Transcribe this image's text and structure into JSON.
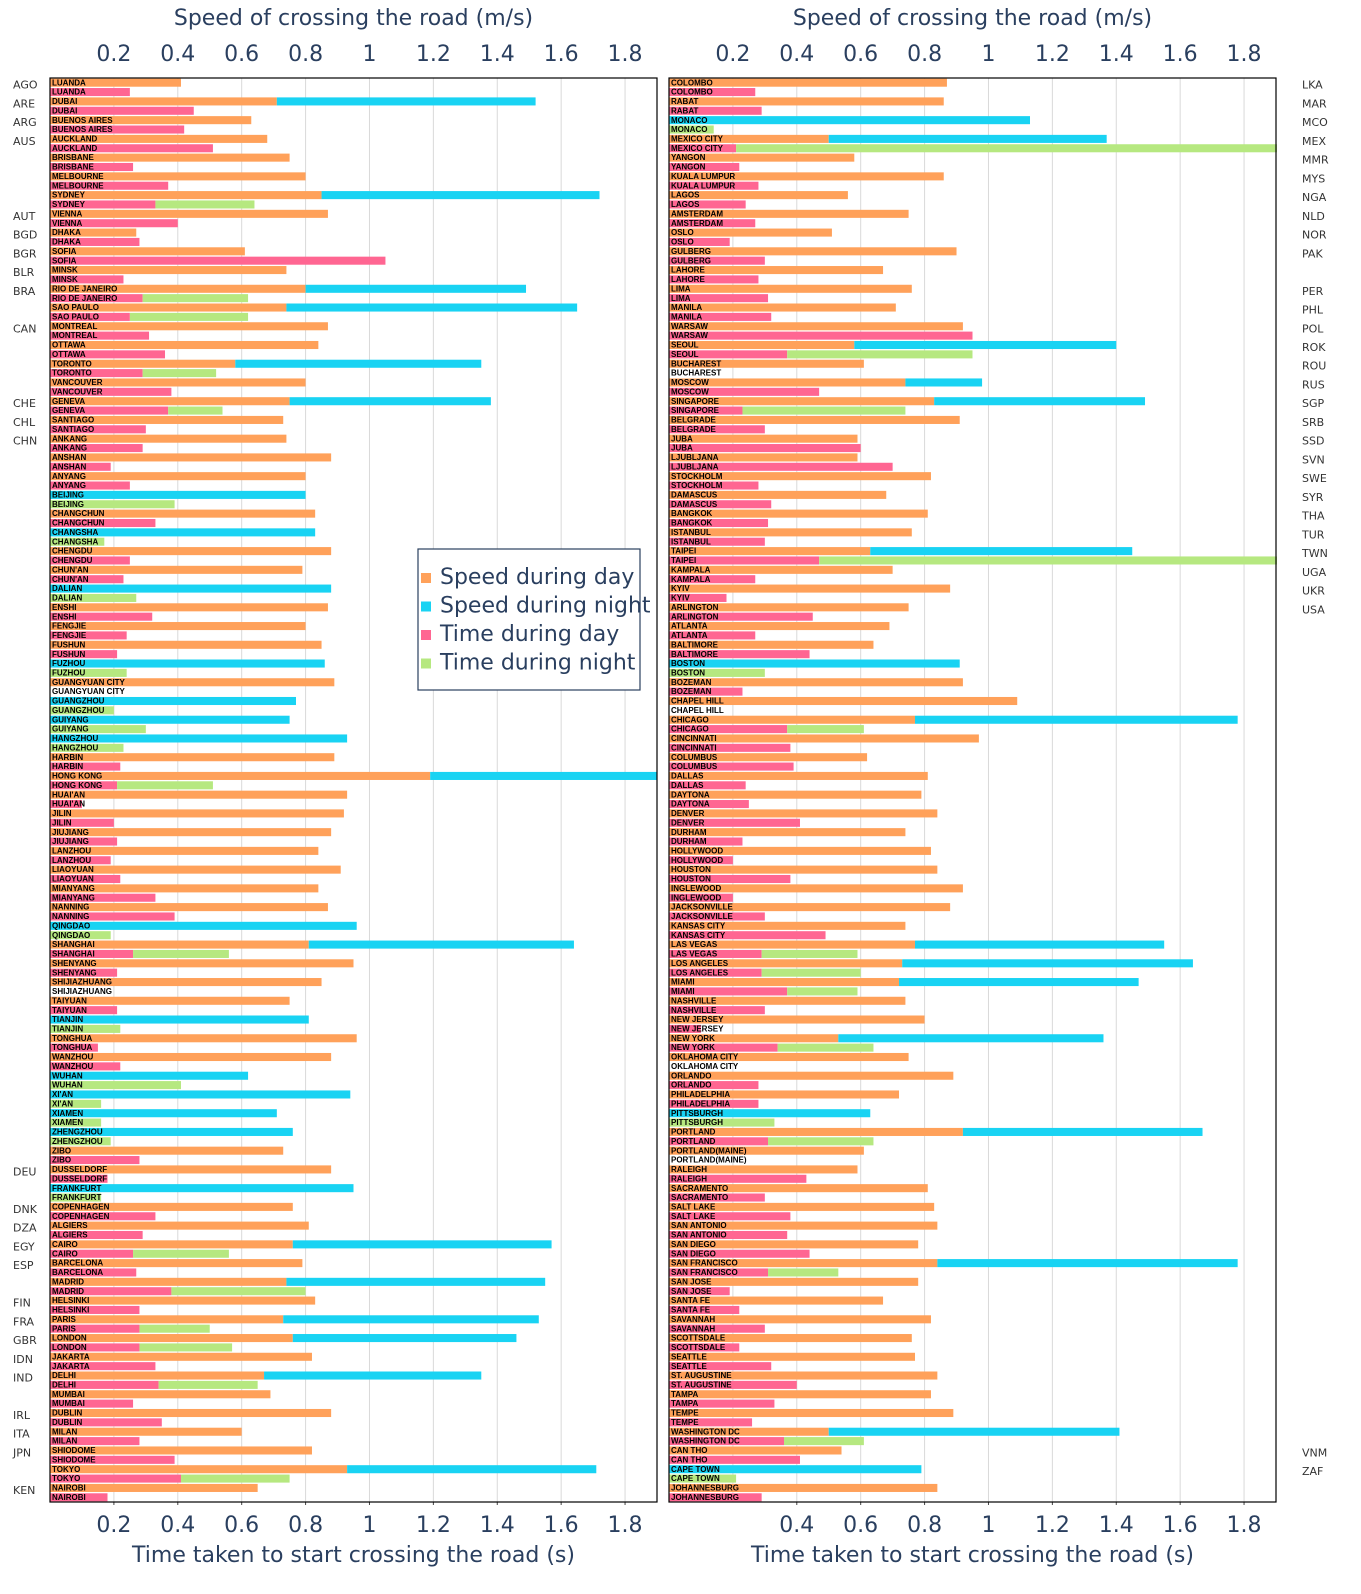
{
  "chart_data": {
    "type": "bar",
    "orientation": "h",
    "barmode": "stack",
    "grid": true,
    "xlim": [
      0,
      1.9
    ],
    "series": [
      {
        "name": "Speed during day",
        "color": "#ffa15a"
      },
      {
        "name": "Speed during night",
        "color": "#19d3f3"
      },
      {
        "name": "Time during day",
        "color": "#ff6692"
      },
      {
        "name": "Time during night",
        "color": "#b6e880"
      }
    ],
    "panels": [
      {
        "x_title_top": "Speed of crossing the road (m/s)",
        "x_title_bottom": "Time taken to start crossing the road (s)",
        "country_side": "left",
        "xticks_top": [
          0.2,
          0.4,
          0.6,
          0.8,
          1,
          1.2,
          1.4,
          1.6,
          1.8
        ],
        "xticks_bottom": [
          0.2,
          0.4,
          0.6,
          0.8,
          1,
          1.2,
          1.4,
          1.6,
          1.8
        ],
        "categories": [
          "LUANDA",
          "DUBAI",
          "BUENOS AIRES",
          "AUCKLAND",
          "BRISBANE",
          "MELBOURNE",
          "SYDNEY",
          "VIENNA",
          "DHAKA",
          "SOFIA",
          "MINSK",
          "RIO DE JANEIRO",
          "SAO PAULO",
          "MONTREAL",
          "OTTAWA",
          "TORONTO",
          "VANCOUVER",
          "GENEVA",
          "SANTIAGO",
          "ANKANG",
          "ANSHAN",
          "ANYANG",
          "BEIJING",
          "CHANGCHUN",
          "CHANGSHA",
          "CHENGDU",
          "CHUN'AN",
          "DALIAN",
          "ENSHI",
          "FENGJIE",
          "FUSHUN",
          "FUZHOU",
          "GUANGYUAN CITY",
          "GUANGZHOU",
          "GUIYANG",
          "HANGZHOU",
          "HARBIN",
          "HONG KONG",
          "HUAI'AN",
          "JILIN",
          "JIUJIANG",
          "LANZHOU",
          "LIAOYUAN",
          "MIANYANG",
          "NANNING",
          "QINGDAO",
          "SHANGHAI",
          "SHENYANG",
          "SHIJIAZHUANG",
          "TAIYUAN",
          "TIANJIN",
          "TONGHUA",
          "WANZHOU",
          "WUHAN",
          "XI'AN",
          "XIAMEN",
          "ZHENGZHOU",
          "ZIBO",
          "DUSSELDORF",
          "FRANKFURT",
          "COPENHAGEN",
          "ALGIERS",
          "CAIRO",
          "BARCELONA",
          "MADRID",
          "HELSINKI",
          "PARIS",
          "LONDON",
          "JAKARTA",
          "DELHI",
          "MUMBAI",
          "DUBLIN",
          "MILAN",
          "SHIODOME",
          "TOKYO",
          "NAIROBI"
        ],
        "countries": [
          "AGO",
          "ARE",
          "ARG",
          "AUS",
          null,
          null,
          null,
          "AUT",
          "BGD",
          "BGR",
          "BLR",
          "BRA",
          null,
          "CAN",
          null,
          null,
          null,
          "CHE",
          "CHL",
          "CHN",
          null,
          null,
          null,
          null,
          null,
          null,
          null,
          null,
          null,
          null,
          null,
          null,
          null,
          null,
          null,
          null,
          null,
          null,
          null,
          null,
          null,
          null,
          null,
          null,
          null,
          null,
          null,
          null,
          null,
          null,
          null,
          null,
          null,
          null,
          null,
          null,
          null,
          null,
          "DEU",
          null,
          "DNK",
          "DZA",
          "EGY",
          "ESP",
          null,
          "FIN",
          "FRA",
          "GBR",
          "IDN",
          "IND",
          null,
          "IRL",
          "ITA",
          "JPN",
          null,
          "KEN"
        ],
        "values": [
          [
            0.41,
            0.71,
            0.63,
            0.68,
            0.75,
            0.8,
            0.85,
            0.87,
            0.27,
            0.61,
            0.74,
            0.8,
            0.74,
            0.87,
            0.84,
            0.58,
            0.8,
            0.75,
            0.73,
            0.74,
            0.88,
            0.8,
            null,
            0.83,
            null,
            0.88,
            0.79,
            null,
            0.87,
            0.8,
            0.85,
            null,
            0.89,
            null,
            null,
            null,
            0.89,
            1.19,
            0.93,
            0.92,
            0.88,
            0.84,
            0.91,
            0.84,
            0.87,
            null,
            0.81,
            0.95,
            0.85,
            0.75,
            null,
            0.96,
            0.88,
            null,
            null,
            null,
            null,
            0.73,
            0.88,
            null,
            0.76,
            0.81,
            0.76,
            0.79,
            0.74,
            0.83,
            0.73,
            0.76,
            0.82,
            0.67,
            0.69,
            0.88,
            0.6,
            0.82,
            0.93,
            0.65
          ],
          [
            null,
            0.81,
            null,
            null,
            null,
            null,
            0.87,
            null,
            null,
            null,
            null,
            0.69,
            0.91,
            null,
            null,
            0.77,
            null,
            0.63,
            null,
            null,
            null,
            null,
            0.8,
            null,
            0.83,
            null,
            null,
            0.88,
            null,
            null,
            null,
            0.86,
            null,
            0.77,
            0.75,
            0.93,
            null,
            0.75,
            null,
            null,
            null,
            null,
            null,
            null,
            null,
            0.96,
            0.83,
            null,
            null,
            null,
            0.81,
            null,
            null,
            0.62,
            0.94,
            0.71,
            0.76,
            null,
            null,
            0.95,
            null,
            null,
            0.81,
            null,
            0.81,
            null,
            0.8,
            0.7,
            null,
            0.68,
            null,
            null,
            null,
            null,
            0.78,
            null
          ],
          [
            0.25,
            0.45,
            0.42,
            0.51,
            0.26,
            0.37,
            0.33,
            0.4,
            0.28,
            1.05,
            0.23,
            0.29,
            0.25,
            0.31,
            0.36,
            0.29,
            0.38,
            0.37,
            0.3,
            0.29,
            0.19,
            0.25,
            null,
            0.33,
            null,
            0.25,
            0.23,
            null,
            0.32,
            0.24,
            0.21,
            null,
            null,
            null,
            null,
            null,
            0.22,
            0.21,
            0.1,
            0.2,
            0.21,
            0.19,
            0.22,
            0.33,
            0.39,
            null,
            0.26,
            0.21,
            null,
            0.21,
            null,
            0.15,
            0.22,
            null,
            null,
            null,
            null,
            0.28,
            0.18,
            null,
            0.33,
            0.29,
            0.26,
            0.27,
            0.38,
            0.28,
            0.28,
            0.28,
            0.33,
            0.34,
            0.26,
            0.35,
            0.28,
            0.39,
            0.41,
            0.18
          ],
          [
            null,
            null,
            null,
            null,
            null,
            null,
            0.31,
            null,
            null,
            null,
            null,
            0.33,
            0.37,
            null,
            null,
            0.23,
            null,
            0.17,
            null,
            null,
            null,
            null,
            0.39,
            null,
            0.17,
            null,
            null,
            0.27,
            null,
            null,
            null,
            0.24,
            null,
            0.2,
            0.3,
            0.23,
            null,
            0.3,
            null,
            null,
            null,
            null,
            null,
            null,
            null,
            0.19,
            0.3,
            null,
            null,
            null,
            0.22,
            null,
            null,
            0.41,
            0.16,
            0.16,
            0.19,
            null,
            null,
            0.16,
            null,
            null,
            0.3,
            null,
            0.42,
            null,
            0.22,
            0.29,
            null,
            0.31,
            null,
            null,
            null,
            null,
            0.34,
            null
          ]
        ]
      },
      {
        "x_title_top": "Speed of crossing the road (m/s)",
        "x_title_bottom": "Time taken to start crossing the road (s)",
        "country_side": "right",
        "xticks_top": [
          0.2,
          0.4,
          0.6,
          0.8,
          1,
          1.2,
          1.4,
          1.6,
          1.8
        ],
        "xticks_bottom": [
          0.4,
          0.6,
          0.8,
          1,
          1.2,
          1.4,
          1.6,
          1.8
        ],
        "categories": [
          "COLOMBO",
          "RABAT",
          "MONACO",
          "MEXICO CITY",
          "YANGON",
          "KUALA LUMPUR",
          "LAGOS",
          "AMSTERDAM",
          "OSLO",
          "GULBERG",
          "LAHORE",
          "LIMA",
          "MANILA",
          "WARSAW",
          "SEOUL",
          "BUCHAREST",
          "MOSCOW",
          "SINGAPORE",
          "BELGRADE",
          "JUBA",
          "LJUBLJANA",
          "STOCKHOLM",
          "DAMASCUS",
          "BANGKOK",
          "ISTANBUL",
          "TAIPEI",
          "KAMPALA",
          "KYIV",
          "ARLINGTON",
          "ATLANTA",
          "BALTIMORE",
          "BOSTON",
          "BOZEMAN",
          "CHAPEL HILL",
          "CHICAGO",
          "CINCINNATI",
          "COLUMBUS",
          "DALLAS",
          "DAYTONA",
          "DENVER",
          "DURHAM",
          "HOLLYWOOD",
          "HOUSTON",
          "INGLEWOOD",
          "JACKSONVILLE",
          "KANSAS CITY",
          "LAS VEGAS",
          "LOS ANGELES",
          "MIAMI",
          "NASHVILLE",
          "NEW JERSEY",
          "NEW YORK",
          "OKLAHOMA CITY",
          "ORLANDO",
          "PHILADELPHIA",
          "PITTSBURGH",
          "PORTLAND",
          "PORTLAND(MAINE)",
          "RALEIGH",
          "SACRAMENTO",
          "SALT LAKE",
          "SAN ANTONIO",
          "SAN DIEGO",
          "SAN FRANCISCO",
          "SAN JOSE",
          "SANTA FE",
          "SAVANNAH",
          "SCOTTSDALE",
          "SEATTLE",
          "ST. AUGUSTINE",
          "TAMPA",
          "TEMPE",
          "WASHINGTON DC",
          "CAN THO",
          "CAPE TOWN",
          "JOHANNESBURG"
        ],
        "countries": [
          "LKA",
          "MAR",
          "MCO",
          "MEX",
          "MMR",
          "MYS",
          "NGA",
          "NLD",
          "NOR",
          "PAK",
          null,
          "PER",
          "PHL",
          "POL",
          "ROK",
          "ROU",
          "RUS",
          "SGP",
          "SRB",
          "SSD",
          "SVN",
          "SWE",
          "SYR",
          "THA",
          "TUR",
          "TWN",
          "UGA",
          "UKR",
          "USA",
          null,
          null,
          null,
          null,
          null,
          null,
          null,
          null,
          null,
          null,
          null,
          null,
          null,
          null,
          null,
          null,
          null,
          null,
          null,
          null,
          null,
          null,
          null,
          null,
          null,
          null,
          null,
          null,
          null,
          null,
          null,
          null,
          null,
          null,
          null,
          null,
          null,
          null,
          null,
          null,
          null,
          null,
          null,
          null,
          "VNM",
          "ZAF",
          null
        ],
        "values": [
          [
            0.87,
            0.86,
            null,
            0.5,
            0.58,
            0.86,
            0.56,
            0.75,
            0.51,
            0.9,
            0.67,
            0.76,
            0.71,
            0.92,
            0.58,
            0.61,
            0.74,
            0.83,
            0.91,
            0.59,
            0.59,
            0.82,
            0.68,
            0.81,
            0.76,
            0.63,
            0.7,
            0.88,
            0.75,
            0.69,
            0.64,
            null,
            0.92,
            1.09,
            0.77,
            0.97,
            0.62,
            0.81,
            0.79,
            0.84,
            0.74,
            0.82,
            0.84,
            0.92,
            0.88,
            0.74,
            0.77,
            0.73,
            0.72,
            0.74,
            0.8,
            0.53,
            0.75,
            0.89,
            0.72,
            null,
            0.92,
            0.61,
            0.59,
            0.81,
            0.83,
            0.84,
            0.78,
            0.84,
            0.78,
            0.67,
            0.82,
            0.76,
            0.77,
            0.84,
            0.82,
            0.89,
            0.5,
            0.54,
            null,
            0.84
          ],
          [
            null,
            null,
            1.13,
            0.87,
            null,
            null,
            null,
            null,
            null,
            null,
            null,
            null,
            null,
            null,
            0.82,
            null,
            0.24,
            0.66,
            null,
            null,
            null,
            null,
            null,
            null,
            null,
            0.82,
            null,
            null,
            null,
            null,
            null,
            0.91,
            null,
            null,
            1.01,
            null,
            null,
            null,
            null,
            null,
            null,
            null,
            null,
            null,
            null,
            null,
            0.78,
            0.91,
            0.75,
            null,
            null,
            0.83,
            null,
            null,
            null,
            0.63,
            0.75,
            null,
            null,
            null,
            null,
            null,
            null,
            0.94,
            null,
            null,
            null,
            null,
            null,
            null,
            null,
            null,
            0.91,
            null,
            0.79,
            null
          ],
          [
            0.27,
            0.29,
            null,
            0.21,
            0.22,
            0.28,
            0.24,
            0.27,
            0.19,
            0.3,
            0.28,
            0.31,
            0.32,
            0.95,
            0.37,
            null,
            0.47,
            0.23,
            0.3,
            0.6,
            0.7,
            0.28,
            0.32,
            0.31,
            0.3,
            0.47,
            0.27,
            0.18,
            0.45,
            0.27,
            0.44,
            null,
            0.23,
            null,
            0.37,
            0.38,
            0.39,
            0.24,
            0.25,
            0.41,
            0.23,
            0.2,
            0.38,
            0.2,
            0.3,
            0.49,
            0.29,
            0.29,
            0.37,
            0.3,
            0.1,
            0.34,
            null,
            0.28,
            0.28,
            null,
            0.31,
            null,
            0.43,
            0.3,
            0.38,
            0.37,
            0.44,
            0.31,
            0.19,
            0.22,
            0.3,
            0.22,
            0.32,
            0.4,
            0.33,
            0.26,
            0.36,
            0.41,
            null,
            0.29
          ],
          [
            null,
            null,
            0.14,
            1.7,
            null,
            null,
            null,
            null,
            null,
            null,
            null,
            null,
            null,
            null,
            0.58,
            null,
            null,
            0.51,
            null,
            null,
            null,
            null,
            null,
            null,
            null,
            1.5,
            null,
            null,
            null,
            null,
            null,
            0.3,
            null,
            null,
            0.24,
            null,
            null,
            null,
            null,
            null,
            null,
            null,
            null,
            null,
            null,
            null,
            0.3,
            0.31,
            0.22,
            null,
            null,
            0.3,
            null,
            null,
            null,
            0.33,
            0.33,
            null,
            null,
            null,
            null,
            null,
            null,
            0.22,
            null,
            null,
            null,
            null,
            null,
            null,
            null,
            null,
            0.25,
            null,
            0.21,
            null
          ]
        ]
      }
    ]
  }
}
